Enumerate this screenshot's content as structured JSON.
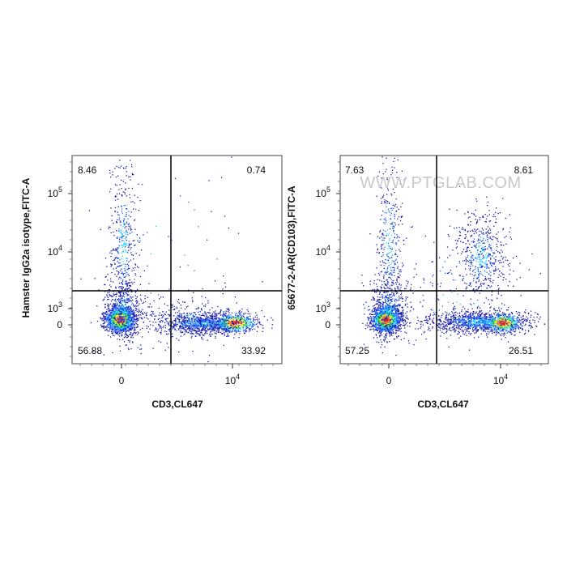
{
  "watermark": "WWW.PTGLAB.COM",
  "chart_data": [
    {
      "type": "scatter",
      "subtype": "flow-cytometry-density-dot-plot",
      "xlabel": "CD3,CL647",
      "ylabel": "Hamster IgG2a isotype,FITC-A",
      "x_ticks": [
        {
          "base": "0",
          "exp": ""
        },
        {
          "base": "10",
          "exp": "4"
        }
      ],
      "y_ticks": [
        {
          "base": "0",
          "exp": ""
        },
        {
          "base": "10",
          "exp": "3"
        },
        {
          "base": "10",
          "exp": "4"
        },
        {
          "base": "10",
          "exp": "5"
        }
      ],
      "quadrants": {
        "top_left": "8.46",
        "top_right": "0.74",
        "bottom_left": "56.88",
        "bottom_right": "33.92"
      },
      "density_colors": [
        "#1a1aa8",
        "#2266ff",
        "#22ccff",
        "#33e055",
        "#f2e22a",
        "#ff8c1a",
        "#e02020"
      ]
    },
    {
      "type": "scatter",
      "subtype": "flow-cytometry-density-dot-plot",
      "xlabel": "CD3,CL647",
      "ylabel": "65677-2-AR(CD103),FITC-A",
      "x_ticks": [
        {
          "base": "0",
          "exp": ""
        },
        {
          "base": "10",
          "exp": "4"
        }
      ],
      "y_ticks": [
        {
          "base": "0",
          "exp": ""
        },
        {
          "base": "10",
          "exp": "3"
        },
        {
          "base": "10",
          "exp": "4"
        },
        {
          "base": "10",
          "exp": "5"
        }
      ],
      "quadrants": {
        "top_left": "7.63",
        "top_right": "8.61",
        "bottom_left": "57.25",
        "bottom_right": "26.51"
      },
      "density_colors": [
        "#1a1aa8",
        "#2266ff",
        "#22ccff",
        "#33e055",
        "#f2e22a",
        "#ff8c1a",
        "#e02020"
      ]
    }
  ]
}
